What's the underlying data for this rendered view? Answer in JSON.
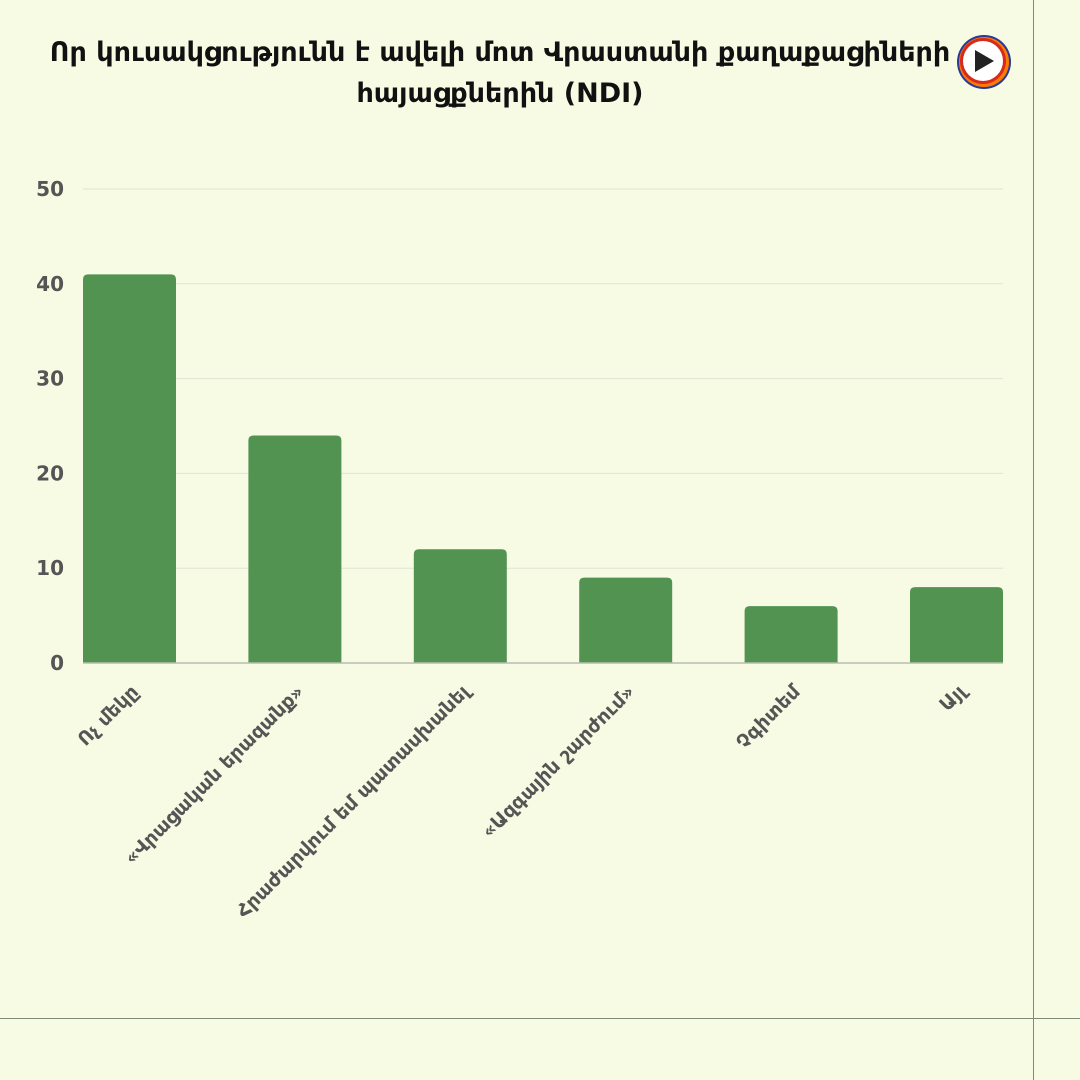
{
  "title": "Որ կուսակցությունն է ավելի մոտ Վրաստանի քաղաքացիների հայացքներին (NDI)",
  "logo": {
    "icon": "play-icon",
    "ring_color": "#ff7a00",
    "inner_color": "#ffffff",
    "triangle_color": "#222222",
    "accent_colors": [
      "#d52b1e",
      "#2b3a97",
      "#ff9a00"
    ]
  },
  "colors": {
    "background": "#f7fbe4",
    "bar": "#529352",
    "gridline": "#dfe3d0",
    "axis": "#b8bcb0",
    "text": "#555555"
  },
  "chart_data": {
    "type": "bar",
    "title": "Որ կուսակցությունն է ավելի մոտ Վրաստանի քաղաքացիների հայացքներին (NDI)",
    "categories": [
      "Ոչ մեկը",
      "«Վրացական երազանք»",
      "Հրաժարվում եմ պատասխանել",
      "«Ազգային շարժում»",
      "Չգիտեմ",
      "Այլ"
    ],
    "values": [
      41,
      24,
      12,
      9,
      6,
      8
    ],
    "ylim": [
      0,
      50
    ],
    "yticks": [
      0,
      10,
      20,
      30,
      40,
      50
    ],
    "xlabel": "",
    "ylabel": "",
    "grid": true,
    "legend": "none"
  }
}
